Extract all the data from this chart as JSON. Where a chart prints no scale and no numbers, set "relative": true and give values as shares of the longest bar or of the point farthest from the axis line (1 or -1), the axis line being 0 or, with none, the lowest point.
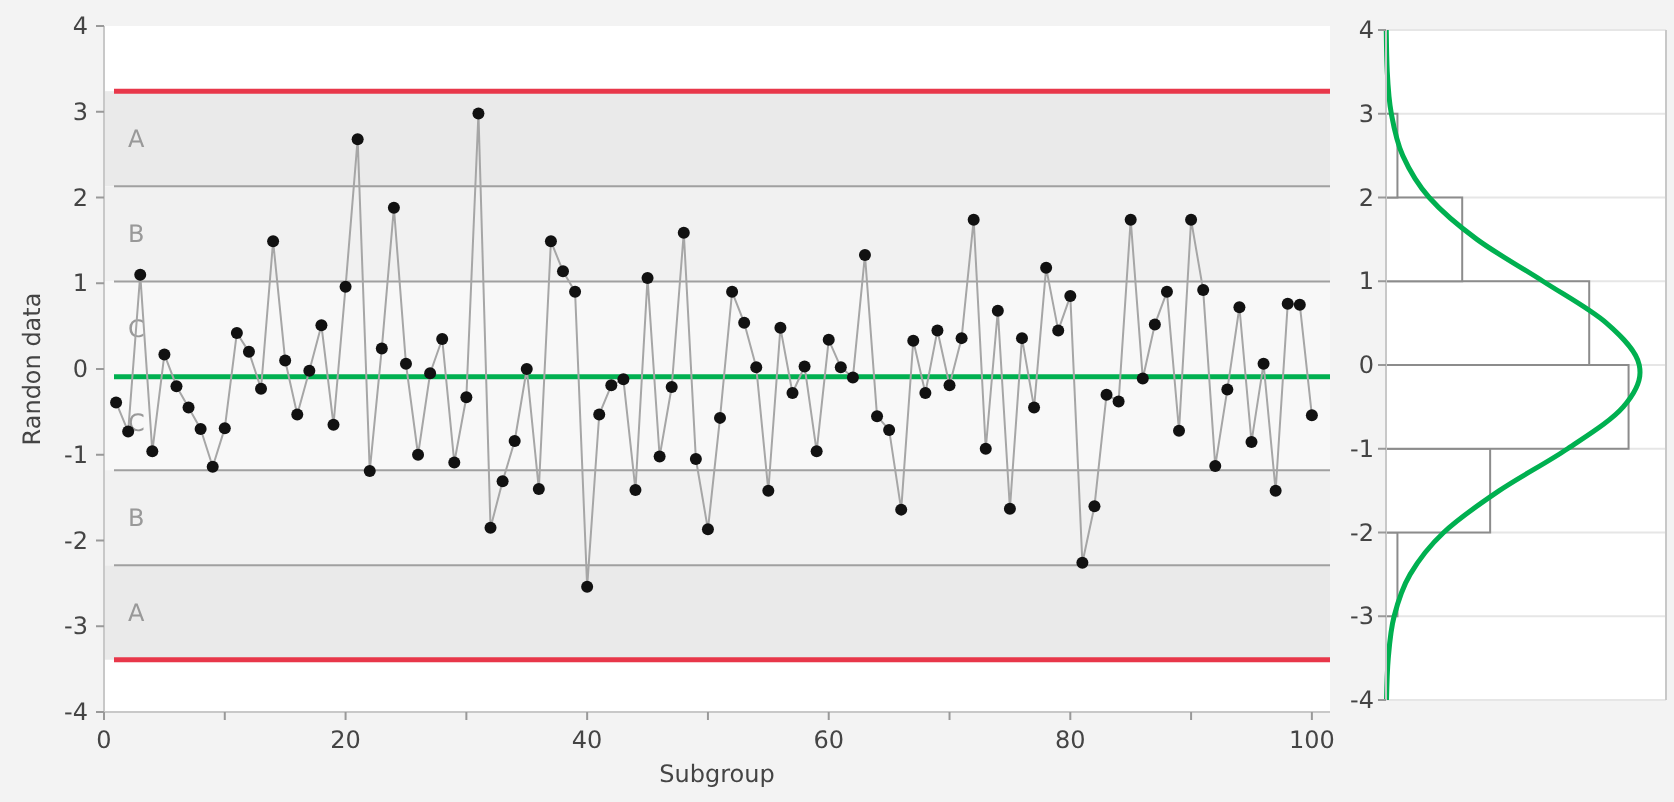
{
  "chart_data": [
    {
      "type": "line",
      "xlabel": "Subgroup",
      "ylabel": "Randon data",
      "x": [
        1,
        2,
        3,
        4,
        5,
        6,
        7,
        8,
        9,
        10,
        11,
        12,
        13,
        14,
        15,
        16,
        17,
        18,
        19,
        20,
        21,
        22,
        23,
        24,
        25,
        26,
        27,
        28,
        29,
        30,
        31,
        32,
        33,
        34,
        35,
        36,
        37,
        38,
        39,
        40,
        41,
        42,
        43,
        44,
        45,
        46,
        47,
        48,
        49,
        50,
        51,
        52,
        53,
        54,
        55,
        56,
        57,
        58,
        59,
        60,
        61,
        62,
        63,
        64,
        65,
        66,
        67,
        68,
        69,
        70,
        71,
        72,
        73,
        74,
        75,
        76,
        77,
        78,
        79,
        80,
        81,
        82,
        83,
        84,
        85,
        86,
        87,
        88,
        89,
        90,
        91,
        92,
        93,
        94,
        95,
        96,
        97,
        98,
        99,
        100
      ],
      "series": [
        {
          "color": "#a6a6a6",
          "values": [
            -0.39,
            -0.73,
            1.1,
            -0.96,
            0.17,
            -0.2,
            -0.45,
            -0.7,
            -1.14,
            -0.69,
            0.42,
            0.2,
            -0.23,
            1.49,
            0.1,
            -0.53,
            -0.02,
            0.51,
            -0.65,
            0.96,
            2.68,
            -1.19,
            0.24,
            1.88,
            0.06,
            -1.0,
            -0.05,
            0.35,
            -1.09,
            -0.33,
            2.98,
            -1.85,
            -1.31,
            -0.84,
            0.0,
            -1.4,
            1.49,
            1.14,
            0.9,
            -2.54,
            -0.53,
            -0.19,
            -0.12,
            -1.41,
            1.06,
            -1.02,
            -0.21,
            1.59,
            -1.05,
            -1.87,
            -0.57,
            0.9,
            0.54,
            0.02,
            -1.42,
            0.48,
            -0.28,
            0.03,
            -0.96,
            0.34,
            0.02,
            -0.1,
            1.33,
            -0.55,
            -0.71,
            -1.64,
            0.33,
            -0.28,
            0.45,
            -0.19,
            0.36,
            1.74,
            -0.93,
            0.68,
            -1.63,
            0.36,
            -0.45,
            1.18,
            0.45,
            0.85,
            -2.26,
            -1.6,
            -0.3,
            -0.38,
            1.74,
            -0.11,
            0.52,
            0.9,
            -0.72,
            1.74,
            0.92,
            -1.13,
            -0.24,
            0.72,
            -0.85,
            0.06,
            -1.42,
            0.76,
            0.75,
            -0.54
          ]
        }
      ],
      "marker": "circle",
      "line_style": "solid",
      "xlim": [
        0,
        101.5
      ],
      "xticks": [
        0,
        {
          "value": 10,
          "label": null
        },
        20,
        {
          "value": 30,
          "label": null
        },
        40,
        {
          "value": 50,
          "label": null
        },
        60,
        {
          "value": 70,
          "label": null
        },
        80,
        {
          "value": 90,
          "label": null
        },
        100
      ],
      "ylim": [
        -4,
        4
      ],
      "yticks": [
        -4,
        -3,
        -2,
        -1,
        0,
        1,
        2,
        3,
        4
      ],
      "grid": false,
      "ref_lines": [
        {
          "axis": "y",
          "value": 3.24,
          "color": "#e8374a"
        },
        {
          "axis": "y",
          "value": -3.39,
          "color": "#e8374a"
        },
        {
          "axis": "y",
          "value": 2.13,
          "color": "#a0a0a0"
        },
        {
          "axis": "y",
          "value": 1.02,
          "color": "#a0a0a0"
        },
        {
          "axis": "y",
          "value": -1.18,
          "color": "#a0a0a0"
        },
        {
          "axis": "y",
          "value": -2.29,
          "color": "#a0a0a0"
        },
        {
          "axis": "y",
          "value": -0.09,
          "color": "#00b050"
        }
      ],
      "bands": [
        {
          "axis": "y",
          "from": 2.13,
          "to": 3.24,
          "label": "A",
          "color": "#eaeaea"
        },
        {
          "axis": "y",
          "from": 1.02,
          "to": 2.13,
          "label": "B",
          "color": "#f1f1f1"
        },
        {
          "axis": "y",
          "from": -0.09,
          "to": 1.02,
          "label": "C",
          "color": "#f8f8f8"
        },
        {
          "axis": "y",
          "from": -1.18,
          "to": -0.09,
          "label": "C",
          "color": "#f8f8f8"
        },
        {
          "axis": "y",
          "from": -2.29,
          "to": -1.18,
          "label": "B",
          "color": "#f1f1f1"
        },
        {
          "axis": "y",
          "from": -3.39,
          "to": -2.29,
          "label": "A",
          "color": "#eaeaea"
        }
      ]
    },
    {
      "type": "histogram",
      "orientation": "horizontal",
      "relative": true,
      "bins": [
        -4,
        -3,
        -2,
        -1,
        0,
        1,
        2,
        3,
        4
      ],
      "values": [
        0,
        0.045,
        0.41,
        0.955,
        0.8,
        0.3,
        0.045,
        0
      ],
      "color": "#ffffff",
      "ylim": [
        -4,
        4
      ],
      "yticks": [
        -4,
        -3,
        -2,
        -1,
        0,
        1,
        2,
        3,
        4
      ],
      "grid": "y",
      "tick_labels": "y",
      "series": [
        {
          "type": "line",
          "color": "#00b050",
          "x": [
            -4,
            -3.5,
            -3,
            -2.5,
            -2,
            -1.5,
            -1,
            -0.5,
            -0.09,
            0,
            0.5,
            1,
            1.5,
            2,
            2.5,
            3,
            3.5,
            4
          ],
          "values": [
            0.002,
            0.009,
            0.032,
            0.095,
            0.227,
            0.446,
            0.715,
            0.934,
            1,
            0.997,
            0.868,
            0.618,
            0.358,
            0.17,
            0.066,
            0.021,
            0.005,
            0.001
          ]
        }
      ]
    }
  ]
}
